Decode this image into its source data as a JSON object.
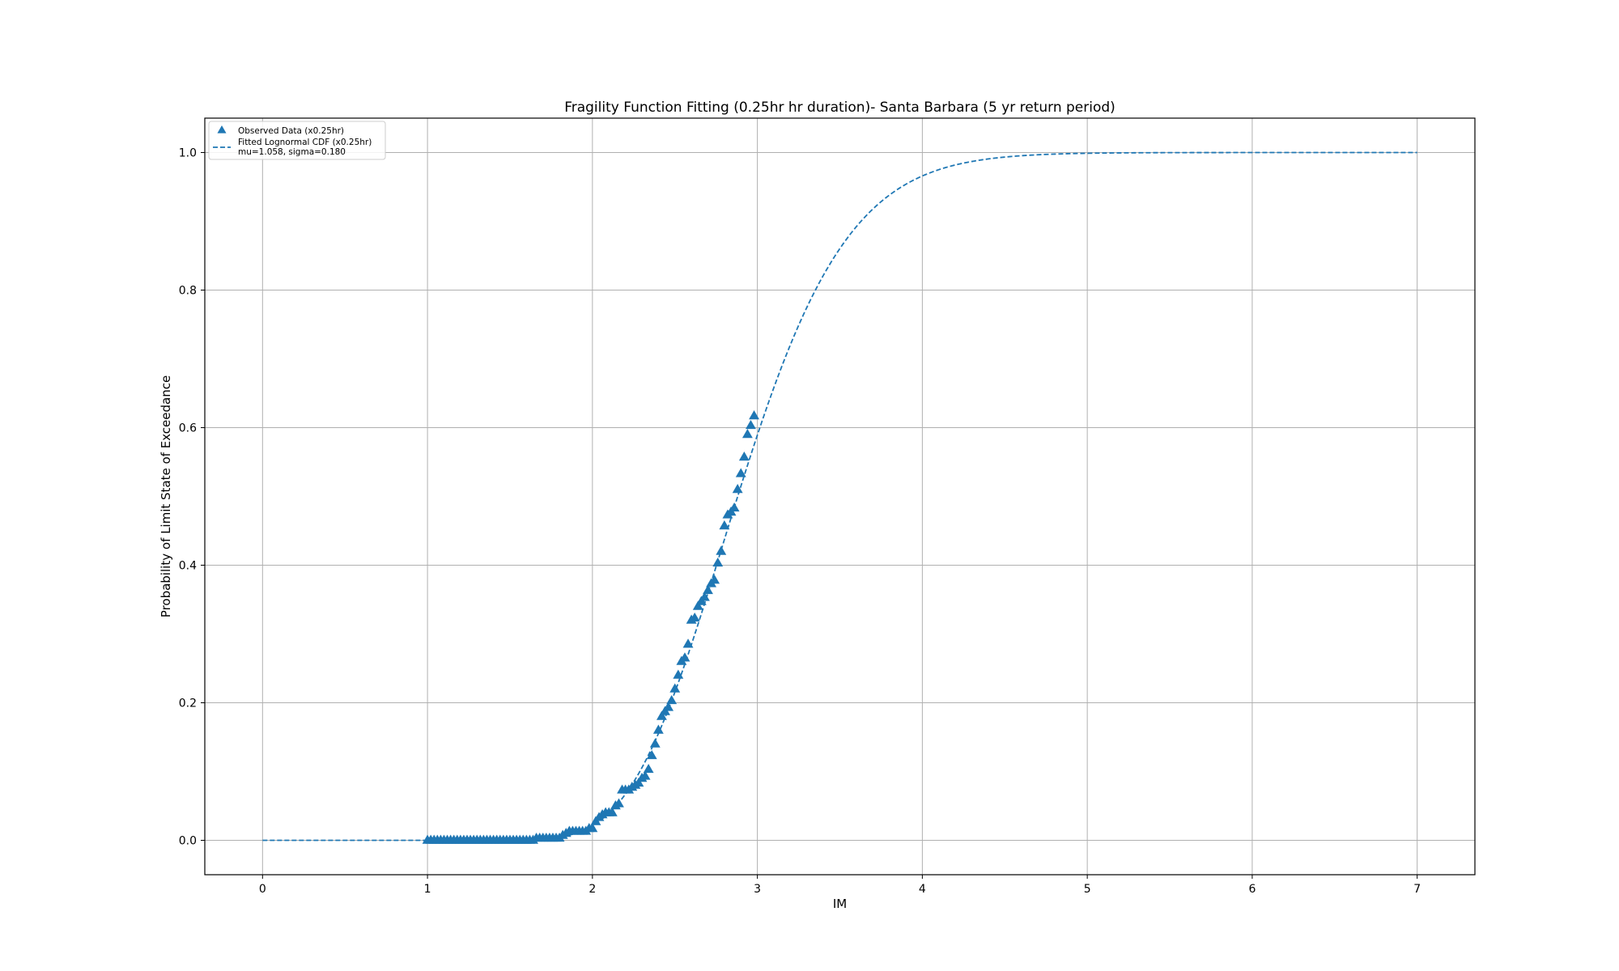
{
  "chart_data": {
    "type": "scatter",
    "title": "Fragility Function Fitting (0.25hr hr duration)- Santa Barbara (5 yr return period)",
    "xlabel": "IM",
    "ylabel": "Probability of Limit State of Exceedance",
    "xlim": [
      -0.35,
      7.35
    ],
    "ylim": [
      -0.05,
      1.05
    ],
    "xticks": [
      "0",
      "1",
      "2",
      "3",
      "4",
      "5",
      "6",
      "7"
    ],
    "yticks": [
      "0.0",
      "0.2",
      "0.4",
      "0.6",
      "0.8",
      "1.0"
    ],
    "grid": true,
    "legend_position": "upper-left",
    "series": [
      {
        "name": "Observed Data (x0.25hr)",
        "kind": "scatter",
        "marker": "triangle-up",
        "color": "#1f77b4",
        "points": [
          [
            1.0,
            0.0
          ],
          [
            1.02,
            0.0
          ],
          [
            1.04,
            0.0
          ],
          [
            1.06,
            0.0
          ],
          [
            1.08,
            0.0
          ],
          [
            1.1,
            0.0
          ],
          [
            1.12,
            0.0
          ],
          [
            1.14,
            0.0
          ],
          [
            1.16,
            0.0
          ],
          [
            1.18,
            0.0
          ],
          [
            1.2,
            0.0
          ],
          [
            1.22,
            0.0
          ],
          [
            1.24,
            0.0
          ],
          [
            1.26,
            0.0
          ],
          [
            1.28,
            0.0
          ],
          [
            1.3,
            0.0
          ],
          [
            1.32,
            0.0
          ],
          [
            1.34,
            0.0
          ],
          [
            1.36,
            0.0
          ],
          [
            1.38,
            0.0
          ],
          [
            1.4,
            0.0
          ],
          [
            1.42,
            0.0
          ],
          [
            1.44,
            0.0
          ],
          [
            1.46,
            0.0
          ],
          [
            1.48,
            0.0
          ],
          [
            1.5,
            0.0
          ],
          [
            1.52,
            0.0
          ],
          [
            1.54,
            0.0
          ],
          [
            1.56,
            0.0
          ],
          [
            1.58,
            0.0
          ],
          [
            1.6,
            0.0
          ],
          [
            1.62,
            0.0
          ],
          [
            1.64,
            0.0
          ],
          [
            1.66,
            0.003
          ],
          [
            1.68,
            0.003
          ],
          [
            1.7,
            0.003
          ],
          [
            1.72,
            0.003
          ],
          [
            1.74,
            0.003
          ],
          [
            1.76,
            0.003
          ],
          [
            1.78,
            0.003
          ],
          [
            1.8,
            0.003
          ],
          [
            1.82,
            0.007
          ],
          [
            1.84,
            0.01
          ],
          [
            1.86,
            0.013
          ],
          [
            1.88,
            0.013
          ],
          [
            1.9,
            0.013
          ],
          [
            1.92,
            0.013
          ],
          [
            1.94,
            0.013
          ],
          [
            1.96,
            0.013
          ],
          [
            1.98,
            0.017
          ],
          [
            2.0,
            0.017
          ],
          [
            2.02,
            0.027
          ],
          [
            2.04,
            0.033
          ],
          [
            2.06,
            0.037
          ],
          [
            2.08,
            0.04
          ],
          [
            2.1,
            0.04
          ],
          [
            2.12,
            0.04
          ],
          [
            2.14,
            0.05
          ],
          [
            2.16,
            0.053
          ],
          [
            2.18,
            0.073
          ],
          [
            2.2,
            0.073
          ],
          [
            2.22,
            0.073
          ],
          [
            2.24,
            0.077
          ],
          [
            2.26,
            0.08
          ],
          [
            2.28,
            0.083
          ],
          [
            2.3,
            0.09
          ],
          [
            2.32,
            0.093
          ],
          [
            2.34,
            0.103
          ],
          [
            2.36,
            0.123
          ],
          [
            2.38,
            0.14
          ],
          [
            2.4,
            0.16
          ],
          [
            2.42,
            0.18
          ],
          [
            2.44,
            0.187
          ],
          [
            2.46,
            0.193
          ],
          [
            2.48,
            0.203
          ],
          [
            2.5,
            0.22
          ],
          [
            2.52,
            0.24
          ],
          [
            2.54,
            0.26
          ],
          [
            2.56,
            0.265
          ],
          [
            2.58,
            0.285
          ],
          [
            2.6,
            0.32
          ],
          [
            2.62,
            0.323
          ],
          [
            2.64,
            0.34
          ],
          [
            2.66,
            0.347
          ],
          [
            2.68,
            0.353
          ],
          [
            2.7,
            0.363
          ],
          [
            2.72,
            0.373
          ],
          [
            2.74,
            0.378
          ],
          [
            2.76,
            0.403
          ],
          [
            2.78,
            0.42
          ],
          [
            2.8,
            0.457
          ],
          [
            2.82,
            0.473
          ],
          [
            2.84,
            0.477
          ],
          [
            2.86,
            0.483
          ],
          [
            2.88,
            0.51
          ],
          [
            2.9,
            0.533
          ],
          [
            2.92,
            0.557
          ],
          [
            2.94,
            0.59
          ],
          [
            2.96,
            0.603
          ],
          [
            2.98,
            0.617
          ]
        ]
      },
      {
        "name": "Fitted Lognormal CDF (x0.25hr)\nmu=1.058, sigma=0.180",
        "kind": "line",
        "style": "dashed",
        "color": "#1f77b4",
        "mu": 1.058,
        "sigma": 0.18,
        "x_range": [
          0,
          7
        ]
      }
    ]
  }
}
